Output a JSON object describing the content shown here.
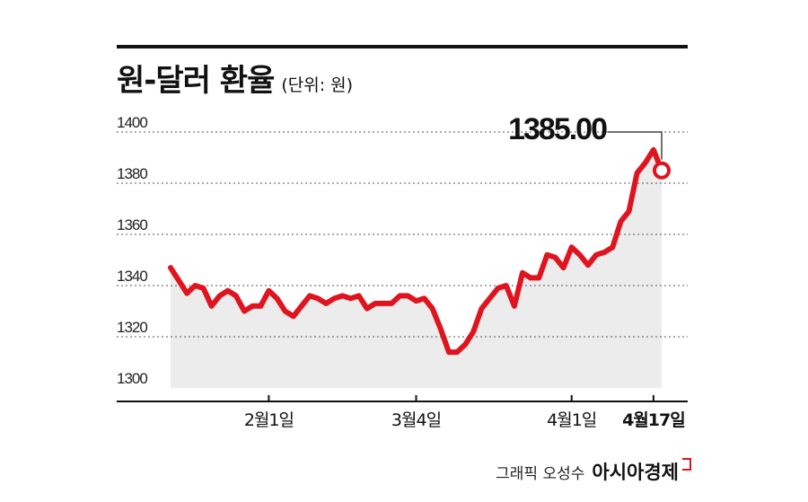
{
  "header": {
    "title": "원-달러 환율",
    "unit": "(단위: 원)"
  },
  "chart_data": {
    "type": "area",
    "title": "원-달러 환율",
    "subtitle": "(단위: 원)",
    "xlabel": "",
    "ylabel": "",
    "ylim": [
      1300,
      1400
    ],
    "y_ticks": [
      1300,
      1320,
      1340,
      1360,
      1380,
      1400
    ],
    "x_tick_labels": [
      {
        "index": 10,
        "label": "2월1일"
      },
      {
        "index": 25,
        "label": "3월4일"
      },
      {
        "index": 41,
        "label": "4월1일"
      },
      {
        "index": 49,
        "label": "4월17일",
        "bold": true
      }
    ],
    "grid": true,
    "series": [
      {
        "values": [
          1347,
          1342,
          1337,
          1340,
          1339,
          1332,
          1336,
          1338,
          1336,
          1330,
          1332,
          1332,
          1338,
          1335,
          1330,
          1328,
          1332,
          1336,
          1335,
          1333,
          1335,
          1336,
          1335,
          1336,
          1331,
          1333,
          1333,
          1333,
          1336,
          1336,
          1334,
          1335,
          1331,
          1323,
          1314,
          1314,
          1317,
          1322,
          1331,
          1335,
          1339,
          1340,
          1332,
          1345,
          1343,
          1343,
          1352,
          1351,
          1347,
          1355,
          1352,
          1348,
          1352,
          1353,
          1355,
          1365,
          1369,
          1384,
          1388,
          1393,
          1385
        ],
        "color": "#e0141e"
      }
    ],
    "callout": {
      "label": "1385.00",
      "value": 1385.0
    },
    "colors": {
      "line": "#e0141e",
      "fill": "#ececec",
      "grid": "#555555",
      "axis": "#111111"
    }
  },
  "footer": {
    "credit": "그래픽 오성수",
    "brand": "아시아경제"
  }
}
